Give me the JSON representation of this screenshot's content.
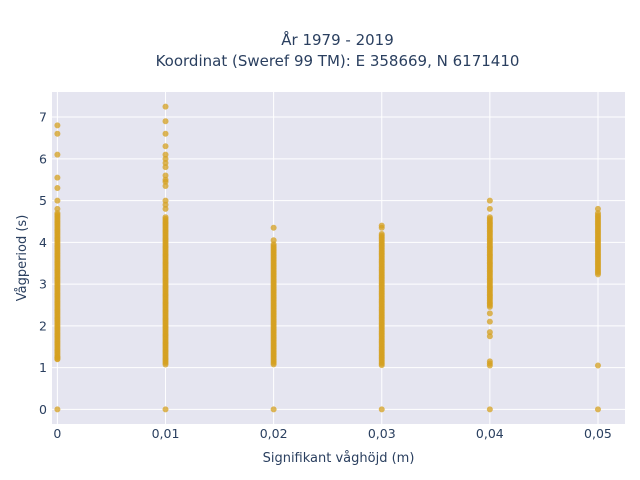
{
  "chart_data": {
    "type": "scatter",
    "title_lines": [
      "År 1979 - 2019",
      "Koordinat (Sweref 99 TM): E 358669, N 6171410"
    ],
    "xlabel": "Signifikant våghöjd (m)",
    "ylabel": "Vågperiod (s)",
    "x_ticks": [
      {
        "value": 0,
        "label": "0"
      },
      {
        "value": 0.01,
        "label": "0,01"
      },
      {
        "value": 0.02,
        "label": "0,02"
      },
      {
        "value": 0.03,
        "label": "0,03"
      },
      {
        "value": 0.04,
        "label": "0,04"
      },
      {
        "value": 0.05,
        "label": "0,05"
      }
    ],
    "y_ticks": [
      0,
      1,
      2,
      3,
      4,
      5,
      6,
      7
    ],
    "xlim": [
      -0.0005,
      0.0525
    ],
    "ylim": [
      -0.35,
      7.6
    ],
    "grid": true,
    "colors": {
      "marker": "#d4a020",
      "plot_bg": "#e5e5f0",
      "grid": "#ffffff",
      "text": "#2a3f5f"
    },
    "marker_opacity": 0.75,
    "series": [
      {
        "columns": [
          {
            "x": 0,
            "range": [
              1.2,
              4.7
            ],
            "points": [
              0,
              1.2,
              1.25,
              4.8,
              5.0,
              5.3,
              5.55,
              6.1,
              6.6,
              6.8
            ]
          },
          {
            "x": 0.01,
            "range": [
              1.05,
              4.6
            ],
            "points": [
              0,
              4.8,
              4.9,
              5.0,
              5.35,
              5.45,
              5.5,
              5.6,
              5.8,
              5.9,
              6.0,
              6.1,
              6.3,
              6.6,
              6.9,
              7.25
            ]
          },
          {
            "x": 0.02,
            "range": [
              1.05,
              3.95
            ],
            "points": [
              0,
              4.05,
              4.35
            ]
          },
          {
            "x": 0.03,
            "range": [
              1.05,
              4.2
            ],
            "points": [
              0,
              4.35,
              4.4
            ]
          },
          {
            "x": 0.04,
            "range": [
              2.45,
              4.6
            ],
            "points": [
              0,
              1.05,
              1.1,
              1.15,
              1.75,
              1.85,
              2.1,
              2.3,
              4.8,
              5.0
            ]
          },
          {
            "x": 0.05,
            "range": [
              3.2,
              4.65
            ],
            "points": [
              0,
              1.05,
              4.7,
              4.8
            ]
          }
        ]
      }
    ]
  }
}
